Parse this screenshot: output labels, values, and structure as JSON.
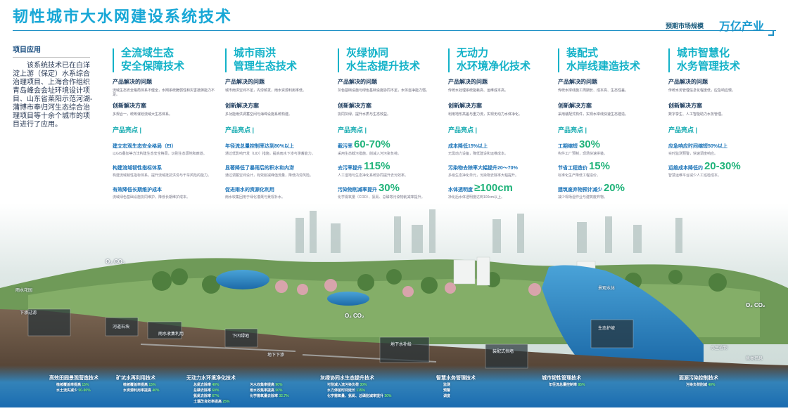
{
  "header": {
    "title": "韧性城市大水网建设系统技术",
    "market_label": "预期市场规模",
    "market_value": "万亿产业"
  },
  "application": {
    "title": "项目应用",
    "body": "该系统技术已在白洋淀上游（保定）水系综合治理项目、上海合作组织青岛峰会会址环境设计项目、山东省莱阳示范河湖-蒲博市奉归河生态综合治理项目等十余个城市的项目进行了应用。"
  },
  "columns": [
    {
      "title_line1": "全流域生态",
      "title_line2": "安全保障技术",
      "problem_label": "产品解决的问题",
      "problem_text": "流域生态安全格局体系不健全，水网系统脆弱性和灾害抵御能力不足。",
      "solution_label": "创新解决方案",
      "solution_text": "多规合一，统筹谋划流域大生态体系。",
      "highlights_label": "产品亮点 |",
      "highlights": [
        {
          "name": "建立宏观生态安全格局（EI）",
          "big": "",
          "text": "以GIS叠加等方法构建生态安全格局，识别生态源地和廊道。"
        },
        {
          "name": "构建流域韧性指标体系",
          "big": "",
          "text": "构建流域韧性指标体系，提升流域抵抗洪涝与干旱风险的能力。"
        },
        {
          "name": "有效降低长期维护成本",
          "big": "",
          "text": "流域绿色基础设施协同维护，降低长期维护成本。"
        }
      ]
    },
    {
      "title_line1": "城市雨洪",
      "title_line2": "管理生态技术",
      "problem_label": "产品解决的问题",
      "problem_text": "城市雨洪空间不足，内涝频发，雨水资源利用率低。",
      "solution_label": "创新解决方案",
      "solution_text": "多功能雨洪调蓄空间与海绵设施系统构建。",
      "highlights_label": "产品亮点 |",
      "highlights": [
        {
          "name": "年径流总量控制率达到80%以上",
          "big": "",
          "text": "通过低影响开发（LID）措施，提高雨水下渗与滞蓄能力。"
        },
        {
          "name": "显著降低了暴雨后的积水和内涝",
          "big": "",
          "text": "通过调蓄空间设计，有效削减峰值流量，降低内涝风险。"
        },
        {
          "name": "促进雨水的资源化利用",
          "big": "",
          "text": "雨水收集回用于绿化灌溉与景观补水。"
        }
      ]
    },
    {
      "title_line1": "灰绿协同",
      "title_line2": "水生态提升技术",
      "problem_label": "产品解决的问题",
      "problem_text": "灰色基础设施与绿色基础设施协同不足，水体自净能力弱。",
      "solution_label": "创新解决方案",
      "solution_text": "协同灰绿，提升水质与生态效益。",
      "highlights_label": "产品亮点 |",
      "highlights": [
        {
          "name": "截污率",
          "big": "60-70%",
          "text": "采用生态截污措施，削减入河污染负荷。"
        },
        {
          "name": "去污率提升",
          "big": "115%",
          "text": "人工湿地与生态净化系统协同提升去污效率。"
        },
        {
          "name": "污染物削减率提升",
          "big": "30%",
          "text": "化学需氧量（COD）、氨氮、总磷等污染物削减率提升。"
        }
      ]
    },
    {
      "title_line1": "无动力",
      "title_line2": "水环境净化技术",
      "problem_label": "产品解决的问题",
      "problem_text": "传统水处理系统能耗高、运维成本高。",
      "solution_label": "创新解决方案",
      "solution_text": "利用地形高差与重力流，实现无动力水体净化。",
      "highlights_label": "产品亮点 |",
      "highlights": [
        {
          "name": "成本降低15%以上",
          "big": "",
          "text": "无需动力设备，降低建设和运维成本。"
        },
        {
          "name": "污染物去除率大幅提升20～70%",
          "big": "",
          "text": "多级生态净化单元，污染物去除率大幅提升。"
        },
        {
          "name": "水体透明度",
          "big": "≥100cm",
          "text": "净化后水体透明度达到100cm以上。"
        }
      ]
    },
    {
      "title_line1": "装配式",
      "title_line2": "水岸线建造技术",
      "problem_label": "产品解决的问题",
      "problem_text": "传统水岸线施工周期长、成本高、生态性差。",
      "solution_label": "创新解决方案",
      "solution_text": "采用装配式构件，实现水岸线快速生态建造。",
      "highlights_label": "产品亮点 |",
      "highlights": [
        {
          "name": "工期缩短",
          "big": "30%",
          "text": "构件工厂预制，现场快速拼装。"
        },
        {
          "name": "节省工程造价",
          "big": "15%",
          "text": "标准化生产降低工程造价。"
        },
        {
          "name": "建筑废弃物预计减少",
          "big": "20%",
          "text": "减少现场湿作业与建筑废弃物。"
        }
      ]
    },
    {
      "title_line1": "城市智慧化",
      "title_line2": "水务管理技术",
      "problem_label": "产品解决的问题",
      "problem_text": "传统水务管理信息化程度低，应急响应慢。",
      "solution_label": "创新解决方案",
      "solution_text": "数字孪生、人工智能助力水务管理。",
      "highlights_label": "产品亮点 |",
      "highlights": [
        {
          "name": "应急响应时间缩短50%以上",
          "big": "",
          "text": "实时监测预警，快速调度响应。"
        },
        {
          "name": "运维成本降低约",
          "big": "20-30%",
          "text": "智慧运维平台减少人工巡检成本。"
        }
      ]
    }
  ],
  "landscape_labels": {
    "left_top": "雨水花园",
    "rainwater": "下渗过滤",
    "garden": "雨水收集利用",
    "river": "河道石块",
    "flood": "下凹绿地",
    "underground": "地下下渗",
    "runoff": "地下水补给",
    "shore1": "装配式挡墙",
    "shore2": "生态护坡",
    "water_depth": "景观水体",
    "reed": "水生植物",
    "fish": "鱼类栖息",
    "co2_left": "O₂ CO₂",
    "co2_mid": "O₂ CO₂",
    "co2_right": "O₂ CO₂"
  },
  "bottom": [
    {
      "title": "高效田园景观营造技术",
      "rows": [
        {
          "label": "植被覆盖率提高",
          "pct": "15%"
        },
        {
          "label": "水土流失减少",
          "pct": "50-90%"
        }
      ]
    },
    {
      "title": "矿坑水再利用技术",
      "rows": [
        {
          "label": "植被覆盖率提高",
          "pct": "15%"
        },
        {
          "label": "水资源利用率提高",
          "pct": "40%"
        }
      ]
    },
    {
      "title": "无动力水环境净化技术",
      "rows": [
        {
          "label": "总氮去除率",
          "pct": "40%"
        },
        {
          "label": "总磷去除率",
          "pct": "60%"
        },
        {
          "label": "氨氮去除率",
          "pct": "67%"
        },
        {
          "label": "土壤改良效率提高",
          "pct": "25%"
        }
      ]
    },
    {
      "title": "",
      "rows": [
        {
          "label": "污水收集率提高",
          "pct": "90%"
        },
        {
          "label": "雨水收集率提高",
          "pct": "50%"
        },
        {
          "label": "化学需氧量去除率",
          "pct": "32.7%"
        }
      ]
    },
    {
      "title": "灰绿协同水生态提升技术",
      "rows": [
        {
          "label": "可削减入流污染负荷",
          "pct": "30%"
        },
        {
          "label": "水力停留时间延长",
          "pct": "115%"
        },
        {
          "label": "化学需氧量、氨氮、总磷削减率提升",
          "pct": "30%"
        }
      ]
    },
    {
      "title": "智慧水务管理技术",
      "rows": [
        {
          "label": "监测",
          "pct": ""
        },
        {
          "label": "预警",
          "pct": ""
        },
        {
          "label": "调度",
          "pct": ""
        }
      ]
    },
    {
      "title": "城市韧性管理技术",
      "rows": [
        {
          "label": "年径流总量控制率",
          "pct": "85%"
        }
      ]
    },
    {
      "title": "面源污染控制技术",
      "rows": [
        {
          "label": "污染负荷削减",
          "pct": "40%"
        }
      ]
    }
  ]
}
